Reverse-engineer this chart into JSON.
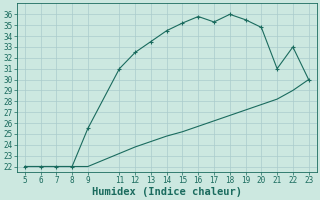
{
  "xlabel": "Humidex (Indice chaleur)",
  "bg_color": "#cce8e0",
  "grid_color": "#aacccc",
  "line_color": "#1a6b5e",
  "upper_x": [
    5,
    6,
    7,
    8,
    9,
    11,
    12,
    13,
    14,
    15,
    16,
    17,
    18,
    19,
    20,
    21,
    22,
    23
  ],
  "upper_y": [
    22,
    22,
    22,
    22,
    25.5,
    31,
    32.5,
    33.5,
    34.5,
    35.2,
    35.8,
    35.3,
    36,
    35.5,
    34.8,
    31,
    33,
    30
  ],
  "lower_x": [
    5,
    6,
    7,
    8,
    9,
    11,
    12,
    13,
    14,
    15,
    16,
    17,
    18,
    19,
    20,
    21,
    22,
    23
  ],
  "lower_y": [
    22,
    22,
    22,
    22,
    22,
    23.2,
    23.8,
    24.3,
    24.8,
    25.2,
    25.7,
    26.2,
    26.7,
    27.2,
    27.7,
    28.2,
    29,
    30
  ],
  "xlim": [
    4.5,
    23.5
  ],
  "ylim": [
    21.5,
    37
  ],
  "yticks": [
    22,
    23,
    24,
    25,
    26,
    27,
    28,
    29,
    30,
    31,
    32,
    33,
    34,
    35,
    36
  ],
  "xticks": [
    5,
    6,
    7,
    8,
    9,
    11,
    12,
    13,
    14,
    15,
    16,
    17,
    18,
    19,
    20,
    21,
    22,
    23
  ],
  "tick_label_fontsize": 5.5,
  "xlabel_fontsize": 7.5
}
